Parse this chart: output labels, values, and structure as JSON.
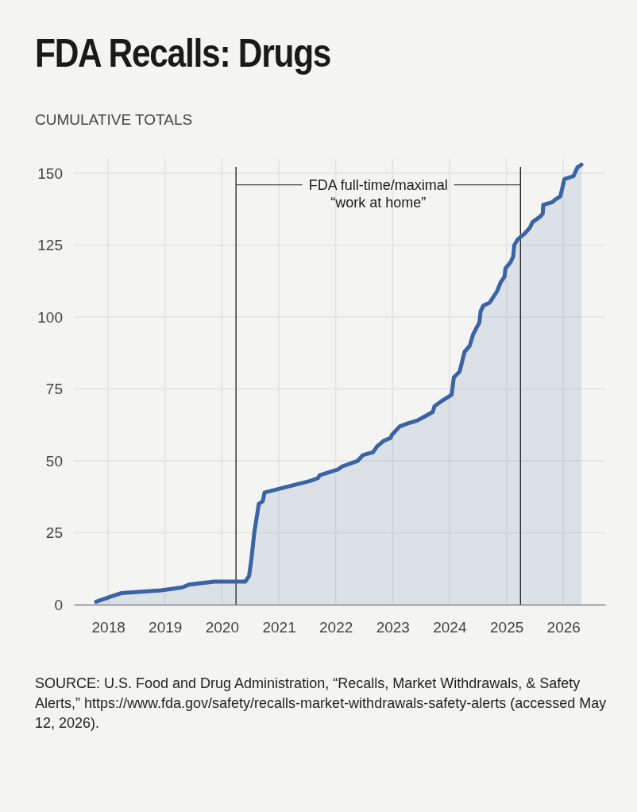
{
  "chart_data": {
    "type": "area",
    "title": "FDA Recalls: Drugs",
    "subtitle": "CUMULATIVE TOTALS",
    "x": [
      "2017-10-15",
      "2018-01-30",
      "2018-03-25",
      "2018-12-09",
      "2019-04-23",
      "2019-06-06",
      "2019-11-14",
      "2020-05-30",
      "2020-06-24",
      "2020-07-09",
      "2020-07-27",
      "2020-08-25",
      "2020-09-20",
      "2020-10-01",
      "2021-07-20",
      "2021-09-09",
      "2021-09-20",
      "2022-01-15",
      "2022-02-09",
      "2022-05-22",
      "2022-06-24",
      "2022-08-29",
      "2022-09-23",
      "2022-11-06",
      "2022-12-20",
      "2022-12-27",
      "2023-02-16",
      "2023-04-09",
      "2023-06-06",
      "2023-07-12",
      "2023-09-16",
      "2023-09-27",
      "2023-11-17",
      "2024-01-15",
      "2024-01-29",
      "2024-03-06",
      "2024-03-20",
      "2024-04-08",
      "2024-05-10",
      "2024-06-01",
      "2024-06-20",
      "2024-07-11",
      "2024-07-19",
      "2024-08-06",
      "2024-09-15",
      "2024-11-02",
      "2024-11-24",
      "2024-12-19",
      "2024-12-26",
      "2025-01-26",
      "2025-02-13",
      "2025-02-20",
      "2025-03-14",
      "2025-04-27",
      "2025-05-30",
      "2025-06-17",
      "2025-08-07",
      "2025-08-22",
      "2025-08-25",
      "2025-10-23",
      "2025-11-14",
      "2025-12-13",
      "2026-01-08",
      "2026-03-07",
      "2026-04-01",
      "2026-04-27"
    ],
    "series": [
      {
        "color": "#3a64a4",
        "values": [
          1,
          3,
          4,
          5,
          6,
          7,
          8,
          8,
          10,
          16,
          25,
          35,
          36,
          39,
          43,
          44,
          45,
          47,
          48,
          50,
          52,
          53,
          55,
          57,
          58,
          59,
          62,
          63,
          64,
          65,
          67,
          69,
          71,
          73,
          79,
          81,
          84,
          88,
          90,
          94,
          96,
          98,
          102,
          104,
          105,
          109,
          112,
          114,
          117,
          119,
          121,
          125,
          127,
          129,
          131,
          133,
          135,
          136,
          139,
          140,
          141,
          142,
          148,
          149,
          152,
          153
        ]
      }
    ],
    "xlim": [
      "2017-05-26",
      "2026-09-27"
    ],
    "xticks": [
      {
        "value": "2018-01-01",
        "label": "2018"
      },
      {
        "value": "2019-01-01",
        "label": "2019"
      },
      {
        "value": "2020-01-01",
        "label": "2020"
      },
      {
        "value": "2021-01-01",
        "label": "2021"
      },
      {
        "value": "2022-01-01",
        "label": "2022"
      },
      {
        "value": "2023-01-01",
        "label": "2023"
      },
      {
        "value": "2024-01-01",
        "label": "2024"
      },
      {
        "value": "2025-01-01",
        "label": "2025"
      },
      {
        "value": "2026-01-01",
        "label": "2026"
      }
    ],
    "ylim": [
      0,
      155
    ],
    "yticks": [
      0,
      25,
      50,
      75,
      100,
      125,
      150
    ],
    "grid": true,
    "ref_lines": [
      {
        "axis": "x",
        "value": "2020-04-01",
        "color": "#1a1a1a"
      },
      {
        "axis": "x",
        "value": "2025-04-01",
        "color": "#1a1a1a"
      }
    ],
    "annotations": [
      {
        "text": "FDA full-time/maximal\n“work at home”",
        "x": "2020-04-01",
        "y": 146
      },
      "SOURCE: U.S. Food and Drug Administration, “Recalls, Market Withdrawals, & Safety Alerts,” https://www.fda.gov/safety/recalls-market-withdrawals-safety-alerts (accessed May 12, 2026)."
    ]
  }
}
